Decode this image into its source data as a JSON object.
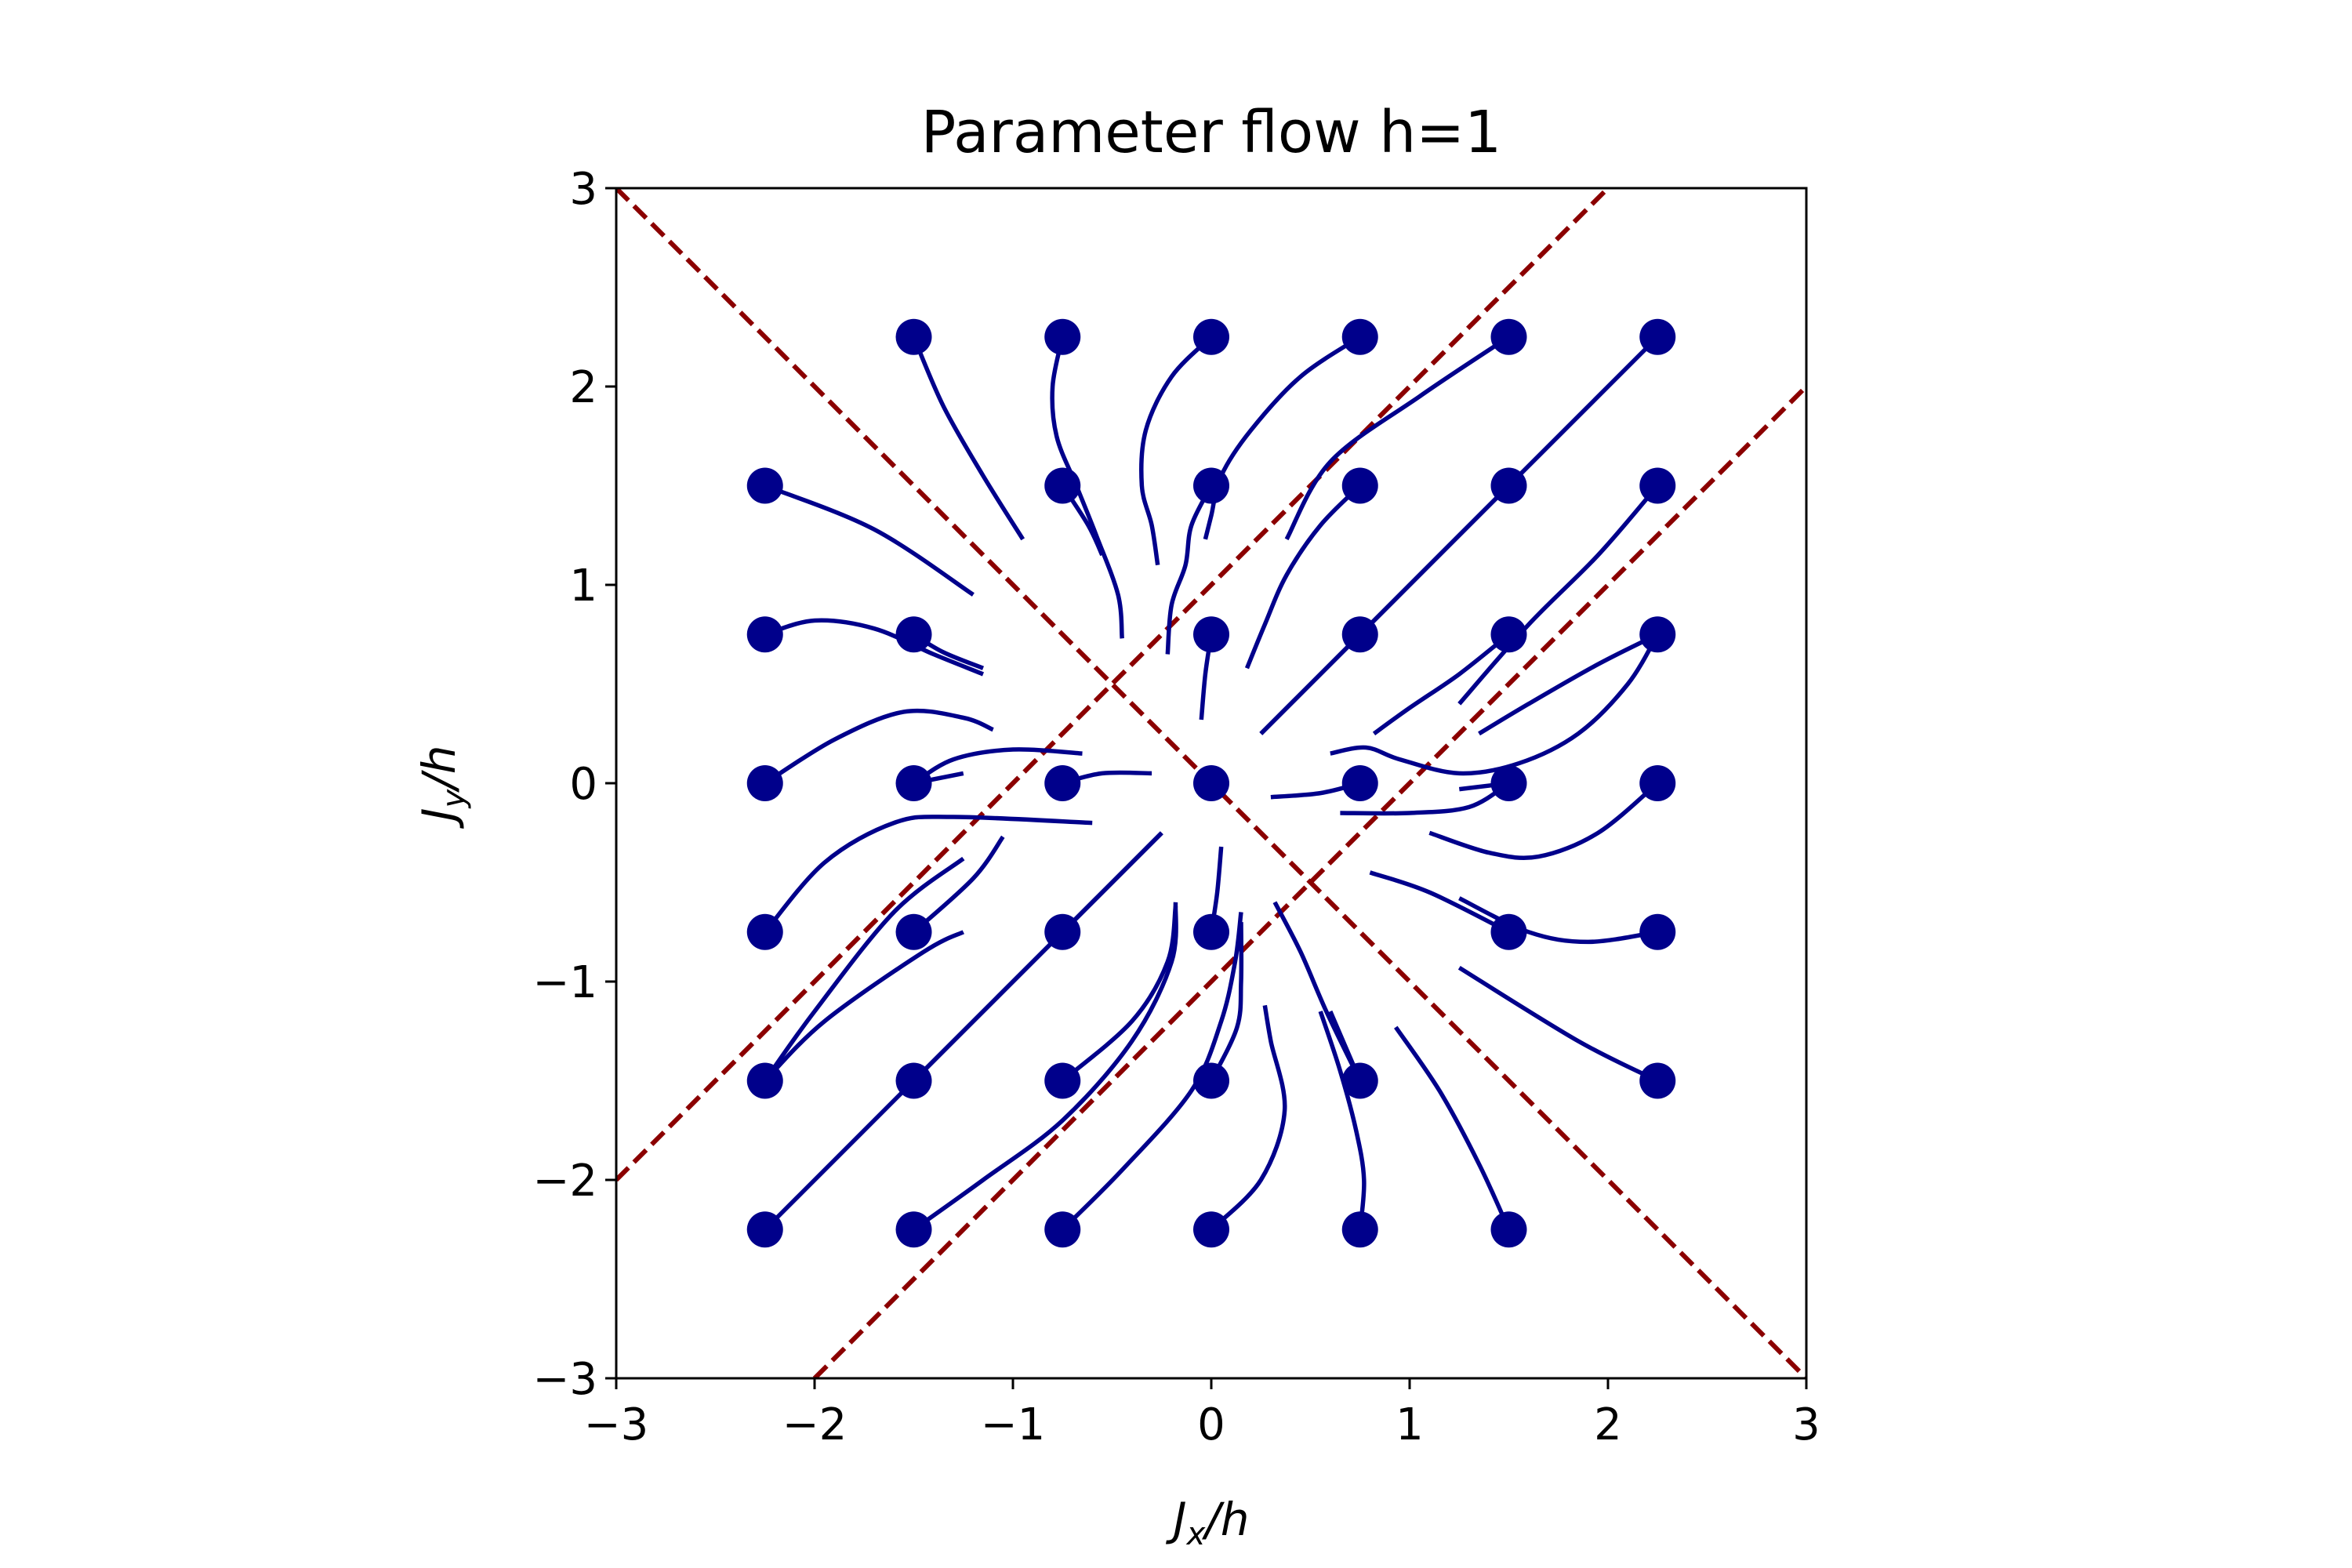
{
  "chart_data": {
    "type": "scatter",
    "title": "Parameter flow h=1",
    "xlabel": "J_x/h",
    "ylabel": "J_y/h",
    "xlim": [
      -3,
      3
    ],
    "ylim": [
      -3,
      3
    ],
    "xticks": [
      {
        "value": -3,
        "label": "−3"
      },
      {
        "value": -2,
        "label": "−2"
      },
      {
        "value": -1,
        "label": "−1"
      },
      {
        "value": 0,
        "label": "0"
      },
      {
        "value": 1,
        "label": "1"
      },
      {
        "value": 2,
        "label": "2"
      },
      {
        "value": 3,
        "label": "3"
      }
    ],
    "yticks": [
      {
        "value": -3,
        "label": "−3"
      },
      {
        "value": -2,
        "label": "−2"
      },
      {
        "value": -1,
        "label": "−1"
      },
      {
        "value": 0,
        "label": "0"
      },
      {
        "value": 1,
        "label": "1"
      },
      {
        "value": 2,
        "label": "2"
      },
      {
        "value": 3,
        "label": "3"
      }
    ],
    "grid": false,
    "colors": {
      "points": "#00008b",
      "flow": "#00008b",
      "boundaries": "#8b0000"
    },
    "boundary_lines": [
      {
        "style": "dashed",
        "points": [
          [
            -3,
            3
          ],
          [
            3,
            -3
          ]
        ]
      },
      {
        "style": "dashed",
        "points": [
          [
            -3,
            -2
          ],
          [
            2,
            3
          ]
        ]
      },
      {
        "style": "dashed",
        "points": [
          [
            -2,
            -3
          ],
          [
            3,
            2
          ]
        ]
      }
    ],
    "points": [
      [
        -1.5,
        2.25
      ],
      [
        -0.75,
        2.25
      ],
      [
        0,
        2.25
      ],
      [
        0.75,
        2.25
      ],
      [
        1.5,
        2.25
      ],
      [
        2.25,
        2.25
      ],
      [
        -2.25,
        1.5
      ],
      [
        -0.75,
        1.5
      ],
      [
        0,
        1.5
      ],
      [
        0.75,
        1.5
      ],
      [
        1.5,
        1.5
      ],
      [
        2.25,
        1.5
      ],
      [
        -2.25,
        0.75
      ],
      [
        -1.5,
        0.75
      ],
      [
        0,
        0.75
      ],
      [
        0.75,
        0.75
      ],
      [
        1.5,
        0.75
      ],
      [
        2.25,
        0.75
      ],
      [
        -2.25,
        0
      ],
      [
        -1.5,
        0
      ],
      [
        -0.75,
        0
      ],
      [
        0,
        0
      ],
      [
        0.75,
        0
      ],
      [
        1.5,
        0
      ],
      [
        2.25,
        0
      ],
      [
        -2.25,
        -0.75
      ],
      [
        -1.5,
        -0.75
      ],
      [
        -0.75,
        -0.75
      ],
      [
        0,
        -0.75
      ],
      [
        1.5,
        -0.75
      ],
      [
        2.25,
        -0.75
      ],
      [
        -2.25,
        -1.5
      ],
      [
        -1.5,
        -1.5
      ],
      [
        -0.75,
        -1.5
      ],
      [
        0,
        -1.5
      ],
      [
        0.75,
        -1.5
      ],
      [
        2.25,
        -1.5
      ],
      [
        -2.25,
        -2.25
      ],
      [
        -1.5,
        -2.25
      ],
      [
        -0.75,
        -2.25
      ],
      [
        0,
        -2.25
      ],
      [
        0.75,
        -2.25
      ],
      [
        1.5,
        -2.25
      ]
    ],
    "flow_lines": [
      [
        [
          -1.5,
          2.25
        ],
        [
          -1.35,
          1.9
        ],
        [
          -1.15,
          1.55
        ],
        [
          -0.95,
          1.23
        ]
      ],
      [
        [
          -0.75,
          2.25
        ],
        [
          -0.8,
          2.0
        ],
        [
          -0.78,
          1.75
        ],
        [
          -0.68,
          1.5
        ],
        [
          -0.58,
          1.25
        ],
        [
          -0.47,
          0.95
        ],
        [
          -0.45,
          0.73
        ]
      ],
      [
        [
          0,
          2.25
        ],
        [
          -0.2,
          2.05
        ],
        [
          -0.33,
          1.78
        ],
        [
          -0.35,
          1.5
        ],
        [
          -0.3,
          1.3
        ],
        [
          -0.27,
          1.1
        ]
      ],
      [
        [
          0.75,
          2.25
        ],
        [
          0.45,
          2.05
        ],
        [
          0.2,
          1.78
        ],
        [
          0.05,
          1.55
        ],
        [
          0.0,
          1.35
        ],
        [
          -0.03,
          1.23
        ]
      ],
      [
        [
          1.5,
          2.25
        ],
        [
          1.05,
          1.95
        ],
        [
          0.6,
          1.62
        ],
        [
          0.38,
          1.23
        ]
      ],
      [
        [
          2.25,
          2.25
        ],
        [
          1.5,
          1.5
        ],
        [
          0.75,
          0.75
        ],
        [
          0.25,
          0.25
        ]
      ],
      [
        [
          -2.25,
          1.5
        ],
        [
          -1.7,
          1.28
        ],
        [
          -1.2,
          0.95
        ]
      ],
      [
        [
          -0.75,
          1.5
        ],
        [
          -0.62,
          1.3
        ],
        [
          -0.55,
          1.15
        ]
      ],
      [
        [
          0,
          1.5
        ],
        [
          -0.1,
          1.3
        ],
        [
          -0.13,
          1.1
        ],
        [
          -0.2,
          0.9
        ],
        [
          -0.22,
          0.65
        ]
      ],
      [
        [
          0.75,
          1.5
        ],
        [
          0.55,
          1.3
        ],
        [
          0.38,
          1.05
        ],
        [
          0.27,
          0.8
        ],
        [
          0.18,
          0.58
        ]
      ],
      [
        [
          1.5,
          1.5
        ],
        [
          0.75,
          0.75
        ],
        [
          0.25,
          0.25
        ]
      ],
      [
        [
          2.25,
          1.5
        ],
        [
          1.95,
          1.15
        ],
        [
          1.6,
          0.8
        ],
        [
          1.25,
          0.4
        ]
      ],
      [
        [
          -2.25,
          0.75
        ],
        [
          -2.0,
          0.82
        ],
        [
          -1.7,
          0.78
        ],
        [
          -1.4,
          0.65
        ],
        [
          -1.15,
          0.55
        ]
      ],
      [
        [
          -1.5,
          0.75
        ],
        [
          -1.35,
          0.66
        ],
        [
          -1.15,
          0.58
        ]
      ],
      [
        [
          0,
          0.75
        ],
        [
          -0.03,
          0.55
        ],
        [
          -0.05,
          0.32
        ]
      ],
      [
        [
          1.5,
          0.75
        ],
        [
          1.25,
          0.55
        ],
        [
          1.0,
          0.38
        ],
        [
          0.82,
          0.25
        ]
      ],
      [
        [
          2.25,
          0.75
        ],
        [
          1.95,
          0.6
        ],
        [
          1.6,
          0.4
        ],
        [
          1.35,
          0.25
        ]
      ],
      [
        [
          2.25,
          0.75
        ],
        [
          2.1,
          0.5
        ],
        [
          1.85,
          0.25
        ],
        [
          1.55,
          0.1
        ],
        [
          1.25,
          0.05
        ],
        [
          0.95,
          0.12
        ],
        [
          0.78,
          0.18
        ],
        [
          0.6,
          0.15
        ]
      ],
      [
        [
          -2.25,
          0
        ],
        [
          -1.9,
          0.22
        ],
        [
          -1.55,
          0.36
        ],
        [
          -1.25,
          0.33
        ],
        [
          -1.1,
          0.27
        ]
      ],
      [
        [
          -1.5,
          0
        ],
        [
          -1.3,
          0.12
        ],
        [
          -1.0,
          0.17
        ],
        [
          -0.65,
          0.15
        ]
      ],
      [
        [
          -1.5,
          0
        ],
        [
          -1.25,
          0.05
        ]
      ],
      [
        [
          -0.75,
          0
        ],
        [
          -0.55,
          0.05
        ],
        [
          -0.3,
          0.05
        ]
      ],
      [
        [
          0.75,
          0
        ],
        [
          0.55,
          -0.05
        ],
        [
          0.3,
          -0.07
        ]
      ],
      [
        [
          1.5,
          0
        ],
        [
          1.25,
          -0.03
        ]
      ],
      [
        [
          2.25,
          0
        ],
        [
          1.95,
          -0.25
        ],
        [
          1.65,
          -0.37
        ],
        [
          1.4,
          -0.35
        ],
        [
          1.1,
          -0.25
        ]
      ],
      [
        [
          1.5,
          0
        ],
        [
          1.3,
          -0.12
        ],
        [
          1.0,
          -0.15
        ],
        [
          0.65,
          -0.15
        ]
      ],
      [
        [
          -2.25,
          -0.75
        ],
        [
          -1.95,
          -0.4
        ],
        [
          -1.6,
          -0.2
        ],
        [
          -1.3,
          -0.17
        ],
        [
          -0.6,
          -0.2
        ]
      ],
      [
        [
          -1.5,
          -0.75
        ],
        [
          -1.2,
          -0.48
        ],
        [
          -1.05,
          -0.27
        ]
      ],
      [
        [
          -0.75,
          -0.75
        ],
        [
          -0.25,
          -0.25
        ]
      ],
      [
        [
          0,
          -0.75
        ],
        [
          0.03,
          -0.55
        ],
        [
          0.05,
          -0.32
        ]
      ],
      [
        [
          2.25,
          -0.75
        ],
        [
          1.9,
          -0.8
        ],
        [
          1.6,
          -0.75
        ],
        [
          1.25,
          -0.58
        ]
      ],
      [
        [
          1.5,
          -0.75
        ],
        [
          1.1,
          -0.55
        ],
        [
          0.8,
          -0.45
        ]
      ],
      [
        [
          -2.25,
          -1.5
        ],
        [
          -2.0,
          -1.15
        ],
        [
          -1.6,
          -0.65
        ],
        [
          -1.25,
          -0.38
        ]
      ],
      [
        [
          -2.25,
          -1.5
        ],
        [
          -1.95,
          -1.2
        ],
        [
          -1.45,
          -0.85
        ],
        [
          -1.25,
          -0.75
        ]
      ],
      [
        [
          -1.5,
          -1.5
        ],
        [
          -0.75,
          -0.75
        ],
        [
          -0.25,
          -0.25
        ]
      ],
      [
        [
          -0.75,
          -1.5
        ],
        [
          -0.4,
          -1.2
        ],
        [
          -0.22,
          -0.9
        ],
        [
          -0.18,
          -0.62
        ]
      ],
      [
        [
          0,
          -1.5
        ],
        [
          0.13,
          -1.23
        ],
        [
          0.15,
          -1.0
        ],
        [
          0.15,
          -0.7
        ]
      ],
      [
        [
          2.25,
          -1.5
        ],
        [
          1.85,
          -1.3
        ],
        [
          1.25,
          -0.93
        ]
      ],
      [
        [
          0.75,
          -1.5
        ],
        [
          0.58,
          -1.15
        ],
        [
          0.45,
          -0.85
        ],
        [
          0.32,
          -0.6
        ]
      ],
      [
        [
          -2.25,
          -2.25
        ],
        [
          -1.5,
          -1.5
        ],
        [
          -0.75,
          -0.75
        ],
        [
          -0.25,
          -0.25
        ]
      ],
      [
        [
          -1.5,
          -2.25
        ],
        [
          -1.15,
          -2.0
        ],
        [
          -0.75,
          -1.7
        ],
        [
          -0.4,
          -1.3
        ],
        [
          -0.2,
          -0.9
        ],
        [
          -0.18,
          -0.6
        ]
      ],
      [
        [
          -0.75,
          -2.25
        ],
        [
          -0.45,
          -1.95
        ],
        [
          -0.1,
          -1.55
        ],
        [
          0.05,
          -1.2
        ],
        [
          0.12,
          -0.9
        ],
        [
          0.15,
          -0.65
        ]
      ],
      [
        [
          0,
          -2.25
        ],
        [
          0.25,
          -2.0
        ],
        [
          0.37,
          -1.65
        ],
        [
          0.3,
          -1.3
        ],
        [
          0.27,
          -1.12
        ]
      ],
      [
        [
          0.75,
          -2.25
        ],
        [
          0.77,
          -2.0
        ],
        [
          0.73,
          -1.75
        ],
        [
          0.65,
          -1.45
        ],
        [
          0.55,
          -1.15
        ]
      ],
      [
        [
          1.5,
          -2.25
        ],
        [
          1.35,
          -1.92
        ],
        [
          1.15,
          -1.55
        ],
        [
          0.93,
          -1.23
        ]
      ],
      [
        [
          0.75,
          -1.5
        ],
        [
          0.6,
          -1.15
        ]
      ]
    ]
  }
}
